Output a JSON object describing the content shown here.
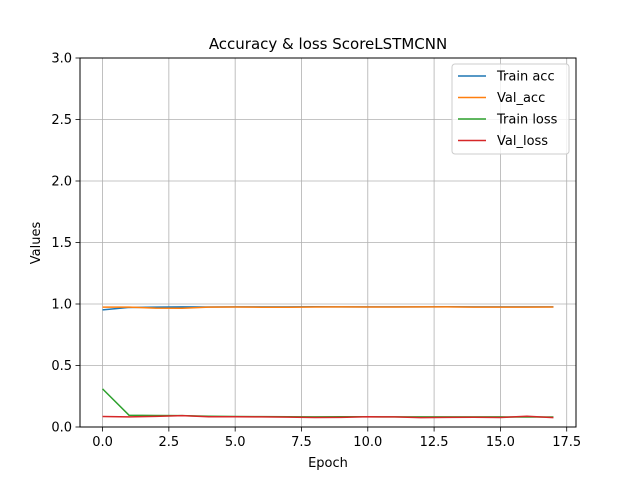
{
  "chart_data": {
    "type": "line",
    "title": "Accuracy & loss ScoreLSTMCNN",
    "xlabel": "Epoch",
    "ylabel": "Values",
    "xlim": [
      -0.85,
      17.85
    ],
    "ylim": [
      0,
      3.0
    ],
    "xticks": [
      0.0,
      2.5,
      5.0,
      7.5,
      10.0,
      12.5,
      15.0,
      17.5
    ],
    "xtick_labels": [
      "0.0",
      "2.5",
      "5.0",
      "7.5",
      "10.0",
      "12.5",
      "15.0",
      "17.5"
    ],
    "yticks": [
      0.0,
      0.5,
      1.0,
      1.5,
      2.0,
      2.5,
      3.0
    ],
    "ytick_labels": [
      "0.0",
      "0.5",
      "1.0",
      "1.5",
      "2.0",
      "2.5",
      "3.0"
    ],
    "grid": true,
    "legend_position": "top-right",
    "x": [
      0,
      1,
      2,
      3,
      4,
      5,
      6,
      7,
      8,
      9,
      10,
      11,
      12,
      13,
      14,
      15,
      16,
      17
    ],
    "series": [
      {
        "name": "Train acc",
        "color": "#1f77b4",
        "values": [
          0.952,
          0.972,
          0.975,
          0.977,
          0.976,
          0.977,
          0.977,
          0.977,
          0.978,
          0.977,
          0.977,
          0.977,
          0.977,
          0.978,
          0.977,
          0.977,
          0.977,
          0.977
        ]
      },
      {
        "name": "Val_acc",
        "color": "#ff7f0e",
        "values": [
          0.975,
          0.975,
          0.966,
          0.965,
          0.975,
          0.976,
          0.974,
          0.974,
          0.976,
          0.977,
          0.976,
          0.976,
          0.977,
          0.977,
          0.975,
          0.975,
          0.975,
          0.976
        ]
      },
      {
        "name": "Train loss",
        "color": "#2ca02c",
        "values": [
          0.31,
          0.095,
          0.093,
          0.092,
          0.087,
          0.085,
          0.084,
          0.083,
          0.082,
          0.083,
          0.083,
          0.082,
          0.082,
          0.082,
          0.082,
          0.082,
          0.081,
          0.081
        ]
      },
      {
        "name": "Val_loss",
        "color": "#d62728",
        "values": [
          0.085,
          0.082,
          0.086,
          0.092,
          0.083,
          0.083,
          0.082,
          0.08,
          0.077,
          0.078,
          0.083,
          0.082,
          0.076,
          0.078,
          0.079,
          0.077,
          0.087,
          0.076
        ]
      }
    ]
  }
}
